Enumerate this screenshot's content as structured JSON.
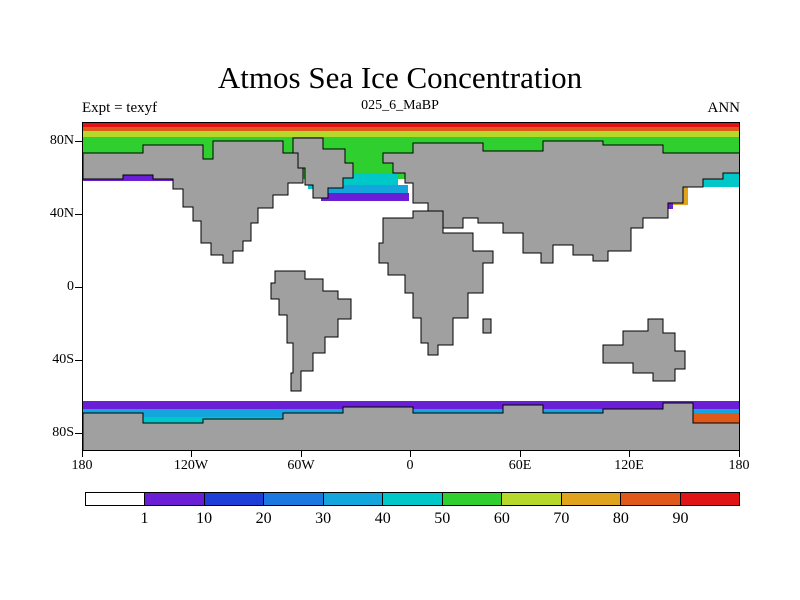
{
  "title": "Atmos Sea Ice Concentration",
  "subtitle_left": "Expt = texyf",
  "subtitle_center": "025_6_MaBP",
  "subtitle_right": "ANN",
  "y_ticks": [
    "80N",
    "40N",
    "0",
    "40S",
    "80S"
  ],
  "x_ticks": [
    "180",
    "120W",
    "60W",
    "0",
    "60E",
    "120E",
    "180"
  ],
  "colorbar": {
    "colors": [
      "#ffffff",
      "#6a1fd6",
      "#1f3ed8",
      "#1a78e0",
      "#12a6dc",
      "#00c8c8",
      "#2ecf2e",
      "#b6d82a",
      "#e0a31e",
      "#e0581a",
      "#e01414"
    ],
    "labels": [
      "1",
      "10",
      "20",
      "30",
      "40",
      "50",
      "60",
      "70",
      "80",
      "90"
    ]
  },
  "map_colors": {
    "land": "#a0a0a0",
    "ocean": "#ffffff"
  }
}
